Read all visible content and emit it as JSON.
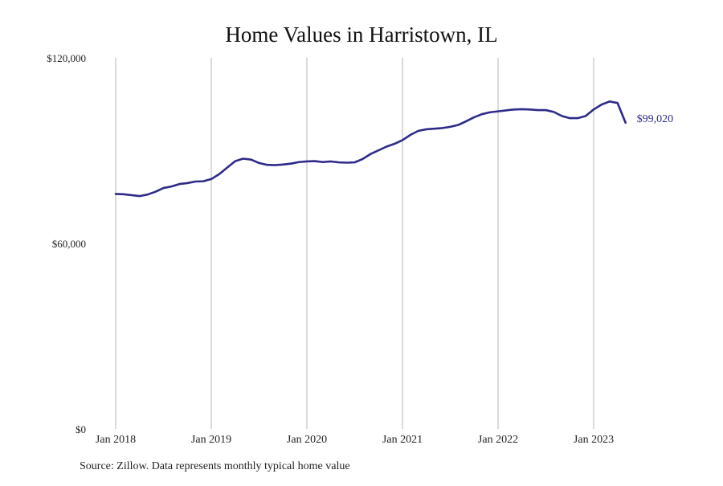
{
  "chart_data": {
    "type": "line",
    "title": "Home Values in Harristown, IL",
    "source": "Source: Zillow. Data represents monthly typical home value",
    "xlabel": "",
    "ylabel": "",
    "ylim": [
      0,
      120000
    ],
    "y_ticks": [
      0,
      60000,
      120000
    ],
    "y_tick_labels": [
      "$0",
      "$60,000",
      "$120,000"
    ],
    "x_range": [
      "2018-01",
      "2023-07"
    ],
    "x_ticks": [
      "2018-01",
      "2019-01",
      "2020-01",
      "2021-01",
      "2022-01",
      "2023-01"
    ],
    "x_tick_labels": [
      "Jan 2018",
      "Jan 2019",
      "Jan 2020",
      "Jan 2021",
      "Jan 2022",
      "Jan 2023"
    ],
    "grid": "vertical",
    "colors": {
      "line": "#2e2a8a",
      "grid": "#b5b5b5",
      "text": "#222222"
    },
    "series": [
      {
        "end_label": "$99,020",
        "x": [
          "2018-01",
          "2018-02",
          "2018-03",
          "2018-04",
          "2018-05",
          "2018-06",
          "2018-07",
          "2018-08",
          "2018-09",
          "2018-10",
          "2018-11",
          "2018-12",
          "2019-01",
          "2019-02",
          "2019-03",
          "2019-04",
          "2019-05",
          "2019-06",
          "2019-07",
          "2019-08",
          "2019-09",
          "2019-10",
          "2019-11",
          "2019-12",
          "2020-01",
          "2020-02",
          "2020-03",
          "2020-04",
          "2020-05",
          "2020-06",
          "2020-07",
          "2020-08",
          "2020-09",
          "2020-10",
          "2020-11",
          "2020-12",
          "2021-01",
          "2021-02",
          "2021-03",
          "2021-04",
          "2021-05",
          "2021-06",
          "2021-07",
          "2021-08",
          "2021-09",
          "2021-10",
          "2021-11",
          "2021-12",
          "2022-01",
          "2022-02",
          "2022-03",
          "2022-04",
          "2022-05",
          "2022-06",
          "2022-07",
          "2022-08",
          "2022-09",
          "2022-10",
          "2022-11",
          "2022-12",
          "2023-01",
          "2023-02",
          "2023-03",
          "2023-04",
          "2023-05"
        ],
        "values": [
          76000,
          75900,
          75600,
          75300,
          75800,
          76700,
          77900,
          78400,
          79200,
          79500,
          80000,
          80100,
          80800,
          82400,
          84500,
          86600,
          87400,
          87100,
          86000,
          85400,
          85300,
          85500,
          85800,
          86300,
          86500,
          86600,
          86300,
          86500,
          86200,
          86100,
          86200,
          87300,
          88900,
          90100,
          91300,
          92200,
          93400,
          95100,
          96400,
          96900,
          97100,
          97300,
          97700,
          98300,
          99500,
          100800,
          101800,
          102400,
          102700,
          103000,
          103300,
          103400,
          103300,
          103100,
          103100,
          102500,
          101200,
          100500,
          100500,
          101200,
          103300,
          104900,
          105900,
          105400,
          99020
        ]
      }
    ]
  }
}
